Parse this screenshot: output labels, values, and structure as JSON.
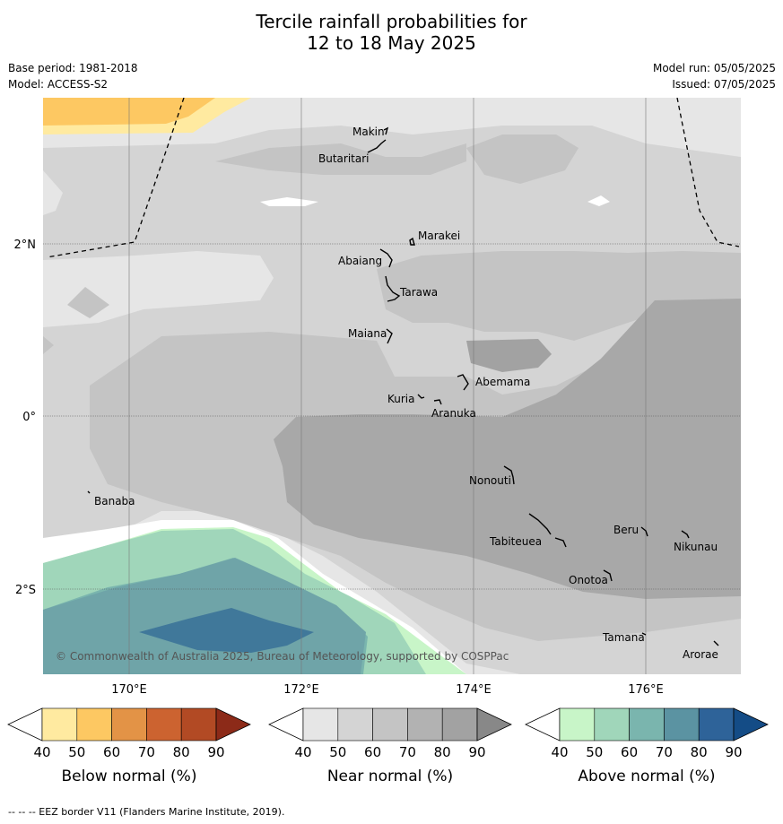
{
  "title_line1": "Tercile rainfall probabilities for",
  "title_line2": "12 to 18 May 2025",
  "meta": {
    "base_period": "Base period: 1981-2018",
    "model": "Model: ACCESS-S2",
    "model_run": "Model run: 05/05/2025",
    "issued": "Issued: 07/05/2025"
  },
  "map": {
    "lat_labels": [
      "2°N",
      "0°",
      "2°S"
    ],
    "lon_labels": [
      "170°E",
      "172°E",
      "174°E",
      "176°E"
    ],
    "places": [
      "Makin",
      "Butaritari",
      "Marakei",
      "Abaiang",
      "Tarawa",
      "Maiana",
      "Abemama",
      "Kuria",
      "Aranuka",
      "Nonouti",
      "Banaba",
      "Beru",
      "Tabiteuea",
      "Nikunau",
      "Onotoa",
      "Tamana",
      "Arorae"
    ],
    "copyright": "© Commonwealth of Australia 2025, Bureau of Meteorology, supported by COSPPac"
  },
  "colorbars": [
    {
      "label": "Below normal (%)",
      "ticks": [
        "40",
        "50",
        "60",
        "70",
        "80",
        "90"
      ],
      "colors": [
        "#ffffff",
        "#ffeaa0",
        "#fdc862",
        "#e39346",
        "#cc6330",
        "#b24a24",
        "#8c2a18"
      ]
    },
    {
      "label": "Near normal (%)",
      "ticks": [
        "40",
        "50",
        "60",
        "70",
        "80",
        "90"
      ],
      "colors": [
        "#ffffff",
        "#e6e6e6",
        "#d4d4d4",
        "#c4c4c4",
        "#b2b2b2",
        "#a2a2a2",
        "#888888"
      ]
    },
    {
      "label": "Above normal (%)",
      "ticks": [
        "40",
        "50",
        "60",
        "70",
        "80",
        "90"
      ],
      "colors": [
        "#ffffff",
        "#c8f5c8",
        "#a0d6ba",
        "#7ab5ae",
        "#5b93a2",
        "#2e6399",
        "#144c86"
      ]
    }
  ],
  "footer": "--  --  -- EEZ border V11 (Flanders Marine Institute, 2019)."
}
